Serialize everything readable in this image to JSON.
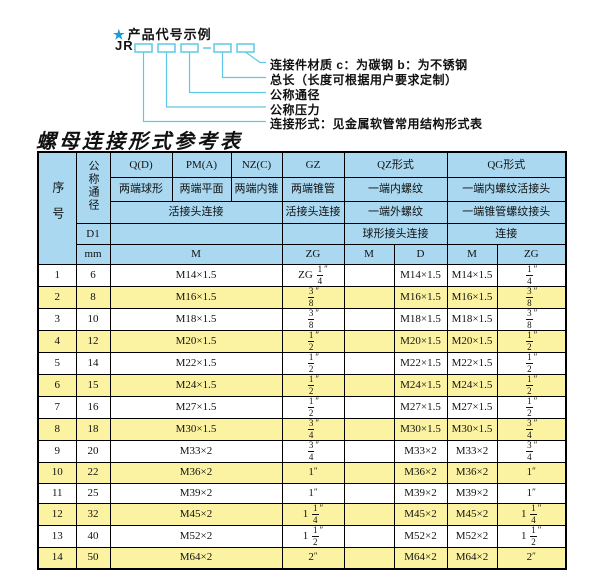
{
  "diagram": {
    "star": "★",
    "title": "产品代号示例",
    "code_prefix": "JR",
    "labels": [
      "连接件材质  c：为碳钢  b：为不锈钢",
      "总长（长度可根据用户要求定制）",
      "公称通径",
      "公称压力",
      "连接形式：见金属软管常用结构形式表"
    ]
  },
  "table": {
    "title": "螺母连接形式参考表",
    "header": {
      "seq": "序号",
      "dn": "公称通径",
      "d1": "D1",
      "mm": "mm",
      "m_label": "M",
      "groups": [
        {
          "code": "Q(D)",
          "ends": "两端球形"
        },
        {
          "code": "PM(A)",
          "ends": "两端平面"
        },
        {
          "code": "NZ(C)",
          "ends": "两端内锥"
        }
      ],
      "joint_row": "活接头连接",
      "gz": {
        "code": "GZ",
        "ends": "两端锥管",
        "joint": "活接头连接",
        "unit": "ZG"
      },
      "qz": {
        "code": "QZ形式",
        "row2": "一端内螺纹",
        "row3": "一端外螺纹",
        "row4": "球形接头连接",
        "units": [
          "M",
          "D"
        ]
      },
      "qg": {
        "code": "QG形式",
        "row2": "一端内螺纹活接头",
        "row3": "一端锥管螺纹接头",
        "row4": "连接",
        "units": [
          "M",
          "ZG"
        ]
      }
    },
    "rows": [
      {
        "seq": "1",
        "dn": "6",
        "m": "M14×1.5",
        "gz": "ZG 1/4″",
        "qz_m": "",
        "qz_d": "M14×1.5",
        "qg_m": "M14×1.5",
        "qg_zg": "1/4″"
      },
      {
        "seq": "2",
        "dn": "8",
        "m": "M16×1.5",
        "gz": "3/8″",
        "qz_m": "",
        "qz_d": "M16×1.5",
        "qg_m": "M16×1.5",
        "qg_zg": "3/8″"
      },
      {
        "seq": "3",
        "dn": "10",
        "m": "M18×1.5",
        "gz": "3/8″",
        "qz_m": "",
        "qz_d": "M18×1.5",
        "qg_m": "M18×1.5",
        "qg_zg": "3/8″"
      },
      {
        "seq": "4",
        "dn": "12",
        "m": "M20×1.5",
        "gz": "1/2″",
        "qz_m": "",
        "qz_d": "M20×1.5",
        "qg_m": "M20×1.5",
        "qg_zg": "1/2″"
      },
      {
        "seq": "5",
        "dn": "14",
        "m": "M22×1.5",
        "gz": "1/2″",
        "qz_m": "",
        "qz_d": "M22×1.5",
        "qg_m": "M22×1.5",
        "qg_zg": "1/2″"
      },
      {
        "seq": "6",
        "dn": "15",
        "m": "M24×1.5",
        "gz": "1/2″",
        "qz_m": "",
        "qz_d": "M24×1.5",
        "qg_m": "M24×1.5",
        "qg_zg": "1/2″"
      },
      {
        "seq": "7",
        "dn": "16",
        "m": "M27×1.5",
        "gz": "1/2″",
        "qz_m": "",
        "qz_d": "M27×1.5",
        "qg_m": "M27×1.5",
        "qg_zg": "1/2″"
      },
      {
        "seq": "8",
        "dn": "18",
        "m": "M30×1.5",
        "gz": "3/4″",
        "qz_m": "",
        "qz_d": "M30×1.5",
        "qg_m": "M30×1.5",
        "qg_zg": "3/4″"
      },
      {
        "seq": "9",
        "dn": "20",
        "m": "M33×2",
        "gz": "3/4″",
        "qz_m": "",
        "qz_d": "M33×2",
        "qg_m": "M33×2",
        "qg_zg": "3/4″"
      },
      {
        "seq": "10",
        "dn": "22",
        "m": "M36×2",
        "gz": "1″",
        "qz_m": "",
        "qz_d": "M36×2",
        "qg_m": "M36×2",
        "qg_zg": "1″"
      },
      {
        "seq": "11",
        "dn": "25",
        "m": "M39×2",
        "gz": "1″",
        "qz_m": "",
        "qz_d": "M39×2",
        "qg_m": "M39×2",
        "qg_zg": "1″"
      },
      {
        "seq": "12",
        "dn": "32",
        "m": "M45×2",
        "gz": "1 1/4″",
        "qz_m": "",
        "qz_d": "M45×2",
        "qg_m": "M45×2",
        "qg_zg": "1 1/4″"
      },
      {
        "seq": "13",
        "dn": "40",
        "m": "M52×2",
        "gz": "1 1/2″",
        "qz_m": "",
        "qz_d": "M52×2",
        "qg_m": "M52×2",
        "qg_zg": "1 1/2″"
      },
      {
        "seq": "14",
        "dn": "50",
        "m": "M64×2",
        "gz": "2″",
        "qz_m": "",
        "qz_d": "M64×2",
        "qg_m": "M64×2",
        "qg_zg": "2″"
      }
    ]
  },
  "colors": {
    "header_bg": "#a9d8f0",
    "row_alt_bg": "#fcf3a2",
    "row_bg": "#ffffff",
    "border": "#000000",
    "diagram_line": "#5fc8e8",
    "star": "#1d9bd5",
    "text": "#111111"
  }
}
